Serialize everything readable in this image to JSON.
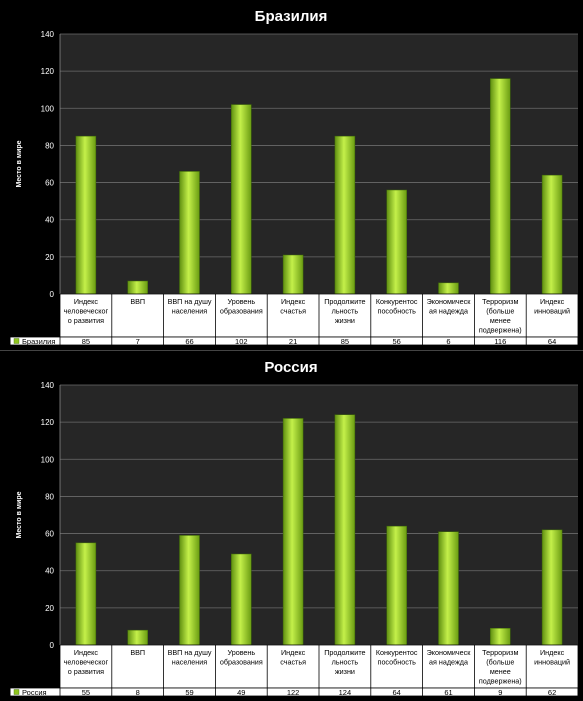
{
  "chart_data": [
    {
      "type": "bar",
      "title": "Бразилия",
      "ylabel": "Место в мире",
      "xlabel": "",
      "ylim": [
        0,
        140
      ],
      "yticks": [
        0,
        20,
        40,
        60,
        80,
        100,
        120,
        140
      ],
      "grid": true,
      "legend_in_table": true,
      "categories": [
        [
          "Индекс",
          "человеческог",
          "о развития"
        ],
        [
          "ВВП"
        ],
        [
          "ВВП на душу",
          "населения"
        ],
        [
          "Уровень",
          "образования"
        ],
        [
          "Индекс",
          "счастья"
        ],
        [
          "Продолжите",
          "льность",
          "жизни"
        ],
        [
          "Конкурентос",
          "пособность"
        ],
        [
          "Экономическ",
          "ая надежда"
        ],
        [
          "Терроризм",
          "(больше",
          "менее",
          "подвержена)"
        ],
        [
          "Индекс",
          "инноваций"
        ]
      ],
      "series": [
        {
          "name": "Бразилия",
          "color": "#8fc520",
          "values": [
            85,
            7,
            66,
            102,
            21,
            85,
            56,
            6,
            116,
            64
          ]
        }
      ]
    },
    {
      "type": "bar",
      "title": "Россия",
      "ylabel": "Место в мире",
      "xlabel": "",
      "ylim": [
        0,
        140
      ],
      "yticks": [
        0,
        20,
        40,
        60,
        80,
        100,
        120,
        140
      ],
      "grid": true,
      "legend_in_table": true,
      "categories": [
        [
          "Индекс",
          "человеческог",
          "о развития"
        ],
        [
          "ВВП"
        ],
        [
          "ВВП на душу",
          "населения"
        ],
        [
          "Уровень",
          "образования"
        ],
        [
          "Индекс",
          "счастья"
        ],
        [
          "Продолжите",
          "льность",
          "жизни"
        ],
        [
          "Конкурентос",
          "пособность"
        ],
        [
          "Экономическ",
          "ая надежда"
        ],
        [
          "Терроризм",
          "(больше",
          "менее",
          "подвержена)"
        ],
        [
          "Индекс",
          "инноваций"
        ]
      ],
      "series": [
        {
          "name": "Россия",
          "color": "#8fc520",
          "values": [
            55,
            8,
            59,
            49,
            122,
            124,
            64,
            61,
            9,
            62
          ]
        }
      ]
    }
  ]
}
